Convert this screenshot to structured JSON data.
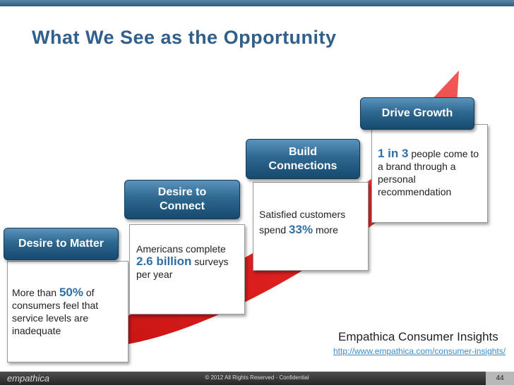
{
  "slide": {
    "title": "What We See as the Opportunity",
    "steps": [
      {
        "header": "Desire to Matter",
        "body": {
          "pre": "More than ",
          "highlight": "50%",
          "post": "  of consumers feel that service levels are inadequate"
        }
      },
      {
        "header_line1": "Desire to",
        "header_line2": "Connect",
        "body": {
          "pre": "Americans complete ",
          "highlight": "2.6 billion",
          "post": " surveys per year"
        }
      },
      {
        "header_line1": "Build",
        "header_line2": "Connections",
        "body": {
          "pre": "Satisfied customers spend ",
          "highlight": "33%",
          "post": " more"
        }
      },
      {
        "header": "Drive Growth",
        "body": {
          "pre": "",
          "highlight": "1 in 3",
          "post": " people come to a brand through a personal recommendation"
        }
      }
    ],
    "brand": "Empathica Consumer Insights",
    "link": "http://www.empathica.com/consumer-insights/"
  },
  "footer": {
    "logo": "empathica",
    "copyright": "© 2012 All Rights Reserved - Confidential",
    "page_number": "44"
  },
  "colors": {
    "arrow": "#e41e1e",
    "header": "#2e6890",
    "title": "#2f5f8a",
    "highlight": "#2f6fa3"
  }
}
